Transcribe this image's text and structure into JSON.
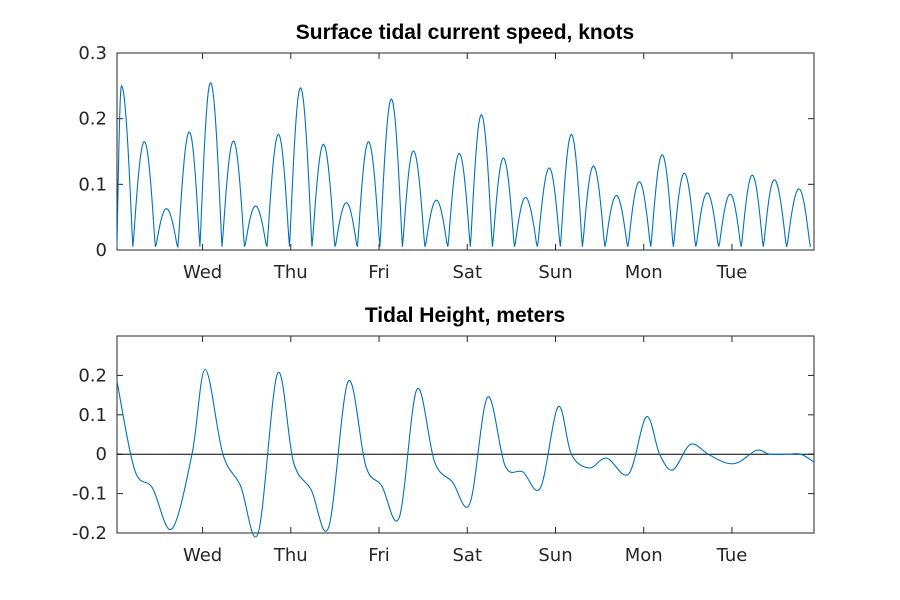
{
  "chart_data": [
    {
      "type": "line",
      "title": "Surface tidal current speed, knots",
      "xlabel": "",
      "ylabel": "",
      "x_ticks": [
        "Wed",
        "Thu",
        "Fri",
        "Sat",
        "Sun",
        "Mon",
        "Tue"
      ],
      "xlim_days": [
        0,
        7.9
      ],
      "ylim": [
        0,
        0.3
      ],
      "y_ticks": [
        0,
        0.1,
        0.2,
        0.3
      ],
      "y_tick_labels": [
        "0",
        "0.1",
        "0.2",
        "0.3"
      ],
      "color": "#0072BD",
      "grid": false,
      "series": [
        {
          "x": [
            0.05,
            0.31,
            0.56,
            0.82,
            1.06,
            1.32,
            1.57,
            1.83,
            2.08,
            2.34,
            2.6,
            2.85,
            3.11,
            3.36,
            3.62,
            3.88,
            4.13,
            4.38,
            4.63,
            4.9,
            5.15,
            5.4,
            5.66,
            5.92,
            6.18,
            6.43,
            6.69,
            6.95,
            7.2,
            7.45,
            7.73
          ],
          "values": [
            0.25,
            0.165,
            0.063,
            0.18,
            0.255,
            0.166,
            0.067,
            0.176,
            0.247,
            0.161,
            0.072,
            0.165,
            0.23,
            0.151,
            0.076,
            0.147,
            0.206,
            0.14,
            0.08,
            0.125,
            0.176,
            0.128,
            0.083,
            0.104,
            0.145,
            0.117,
            0.087,
            0.085,
            0.114,
            0.107,
            0.093
          ]
        }
      ]
    },
    {
      "type": "line",
      "title": "Tidal Height, meters",
      "xlabel": "",
      "ylabel": "",
      "x_ticks": [
        "Wed",
        "Thu",
        "Fri",
        "Sat",
        "Sun",
        "Mon",
        "Tue"
      ],
      "xlim_days": [
        0,
        7.9
      ],
      "ylim": [
        -0.2,
        0.3
      ],
      "y_ticks": [
        -0.2,
        -0.1,
        0,
        0.1,
        0.2
      ],
      "y_tick_labels": [
        "-0.2",
        "-0.1",
        "0",
        "0.1",
        "0.2"
      ],
      "color": "#0072BD",
      "zero_line": true,
      "grid": false,
      "series": [
        {
          "x": [
            0.0,
            0.2,
            0.4,
            0.62,
            0.85,
            1.0,
            1.2,
            1.4,
            1.6,
            1.82,
            2.0,
            2.2,
            2.4,
            2.62,
            2.82,
            3.0,
            3.2,
            3.4,
            3.6,
            3.8,
            4.0,
            4.2,
            4.4,
            4.6,
            4.8,
            5.0,
            5.15,
            5.35,
            5.55,
            5.8,
            6.0,
            6.15,
            6.3,
            6.5,
            6.7,
            6.9,
            7.05,
            7.25,
            7.4,
            7.6,
            7.75,
            7.9
          ],
          "values": [
            0.185,
            -0.04,
            -0.085,
            -0.19,
            0.0,
            0.215,
            0.0,
            -0.08,
            -0.2,
            0.205,
            -0.02,
            -0.09,
            -0.185,
            0.185,
            -0.03,
            -0.08,
            -0.16,
            0.165,
            -0.02,
            -0.07,
            -0.125,
            0.145,
            -0.03,
            -0.045,
            -0.085,
            0.12,
            0.0,
            -0.035,
            -0.01,
            -0.05,
            0.095,
            0.0,
            -0.04,
            0.025,
            0.0,
            -0.022,
            -0.02,
            0.01,
            0.0,
            0.0,
            0.0,
            -0.02
          ]
        }
      ]
    }
  ]
}
